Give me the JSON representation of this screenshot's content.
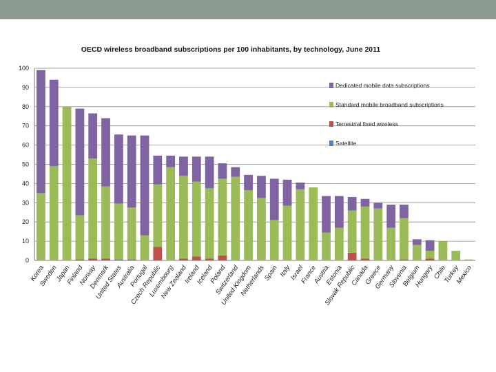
{
  "chart_data": {
    "type": "bar",
    "stacked": true,
    "title": "OECD wireless broadband subscriptions per 100 inhabitants, by technology, June 2011",
    "xlabel": "",
    "ylabel": "",
    "ylim": [
      0,
      100
    ],
    "yticks": [
      0,
      10,
      20,
      30,
      40,
      50,
      60,
      70,
      80,
      90,
      100
    ],
    "grid": true,
    "legend_position": "right",
    "categories": [
      "Korea",
      "Sweden",
      "Japan",
      "Finland",
      "Norway",
      "Denmark",
      "United States",
      "Australia",
      "Portugal",
      "Czech Republic",
      "Luxembourg",
      "New Zealand",
      "Ireland",
      "Iceland",
      "Poland",
      "Switzerland",
      "United Kingdom",
      "Netherlands",
      "Spain",
      "Italy",
      "Israel",
      "France",
      "Austria",
      "Estonia",
      "Slovak Republic",
      "Canada",
      "Greece",
      "Germany",
      "Slovenia",
      "Belgium",
      "Hungary",
      "Chile",
      "Turkey",
      "Mexico"
    ],
    "series": [
      {
        "name": "Satellite",
        "color": "#4f81bd",
        "values": [
          0,
          0,
          0,
          0,
          0,
          0,
          0.5,
          0.5,
          0,
          0,
          0,
          0,
          0,
          0,
          0,
          0,
          0,
          0,
          0,
          0,
          0,
          0,
          0,
          0,
          0,
          0,
          0,
          0,
          0,
          0,
          0,
          0,
          0,
          0
        ]
      },
      {
        "name": "Terrestrial fixed wireless",
        "color": "#c0504d",
        "values": [
          0,
          0,
          0,
          0.5,
          1,
          1,
          0,
          0,
          0,
          7,
          0,
          1,
          2,
          1,
          2.5,
          0,
          0,
          0,
          0,
          0,
          0,
          0,
          0,
          0,
          4,
          1,
          0,
          0,
          0.5,
          0,
          1,
          0,
          0,
          0
        ]
      },
      {
        "name": "Standard mobile broadband subscriptions",
        "color": "#9bbb59",
        "values": [
          35,
          49,
          80,
          23,
          52,
          37.5,
          29,
          27,
          13,
          32.5,
          48.5,
          43,
          39,
          36.5,
          40,
          43.5,
          36.5,
          32.5,
          21,
          28.5,
          37,
          38,
          14.5,
          17,
          22,
          27,
          27,
          17,
          21.5,
          8,
          4,
          10,
          5,
          0.5
        ]
      },
      {
        "name": "Dedicated mobile data subscriptions",
        "color": "#8064a2",
        "values": [
          64,
          45,
          0,
          55.5,
          23.5,
          35.5,
          36,
          37.5,
          52,
          15,
          6,
          10,
          13,
          16.5,
          8,
          5,
          8,
          11.5,
          21.5,
          13.5,
          3.5,
          0,
          19,
          16.5,
          7,
          4,
          3,
          12,
          7,
          3,
          5.5,
          0,
          0,
          0
        ]
      }
    ]
  }
}
